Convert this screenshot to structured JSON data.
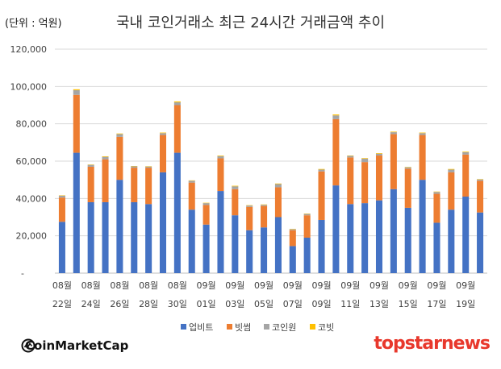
{
  "unit_label": "(단위 : 억원)",
  "chart_data": {
    "type": "bar",
    "stacked": true,
    "title": "국내 코인거래소 최근 24시간 거래금액 추이",
    "ylim": [
      0,
      120000
    ],
    "y_ticks": [
      "-",
      "20,000",
      "40,000",
      "60,000",
      "80,000",
      "100,000",
      "120,000"
    ],
    "grid": true,
    "legend_position": "bottom",
    "x_labels": [
      {
        "month": "08월",
        "day": "22일"
      },
      {
        "month": "08월",
        "day": "24일"
      },
      {
        "month": "08월",
        "day": "26일"
      },
      {
        "month": "08월",
        "day": "28일"
      },
      {
        "month": "08월",
        "day": "30일"
      },
      {
        "month": "09월",
        "day": "01일"
      },
      {
        "month": "09월",
        "day": "03일"
      },
      {
        "month": "09월",
        "day": "05일"
      },
      {
        "month": "09월",
        "day": "07일"
      },
      {
        "month": "09월",
        "day": "09일"
      },
      {
        "month": "09월",
        "day": "11일"
      },
      {
        "month": "09월",
        "day": "13일"
      },
      {
        "month": "09월",
        "day": "15일"
      },
      {
        "month": "09월",
        "day": "17일"
      },
      {
        "month": "09월",
        "day": "19일"
      }
    ],
    "series": [
      {
        "name": "업비트",
        "color": "#4472c4",
        "values": [
          27500,
          64500,
          38000,
          38000,
          50000,
          38000,
          37000,
          54000,
          64500,
          34000,
          26000,
          44000,
          31000,
          23000,
          24500,
          30000,
          14500,
          19000,
          28500,
          47000,
          37000,
          37500,
          39000,
          45000,
          35000,
          50000,
          27000,
          34000,
          41000,
          32500
        ]
      },
      {
        "name": "빗썸",
        "color": "#ed7d31",
        "values": [
          13000,
          31000,
          19000,
          23000,
          23000,
          18500,
          19500,
          20000,
          25500,
          14500,
          10500,
          17500,
          14000,
          12500,
          11500,
          16000,
          8500,
          12000,
          26000,
          35500,
          25000,
          22000,
          24000,
          29500,
          21000,
          24000,
          15500,
          20000,
          22500,
          17000
        ]
      },
      {
        "name": "코인원",
        "color": "#a5a5a5",
        "values": [
          1000,
          2500,
          1000,
          1300,
          1500,
          700,
          600,
          1000,
          1500,
          1000,
          1000,
          1200,
          1500,
          700,
          600,
          1700,
          500,
          700,
          1000,
          2000,
          800,
          1800,
          1000,
          1000,
          700,
          1000,
          1000,
          1500,
          1300,
          700
        ]
      },
      {
        "name": "코빗",
        "color": "#ffc000",
        "values": [
          200,
          500,
          200,
          300,
          300,
          200,
          200,
          300,
          500,
          200,
          200,
          300,
          300,
          200,
          200,
          300,
          200,
          200,
          300,
          500,
          200,
          300,
          300,
          300,
          200,
          300,
          200,
          300,
          300,
          200
        ]
      }
    ]
  },
  "branding": {
    "left_text": "CoinMarketCap",
    "right_text": "topstarnews"
  }
}
